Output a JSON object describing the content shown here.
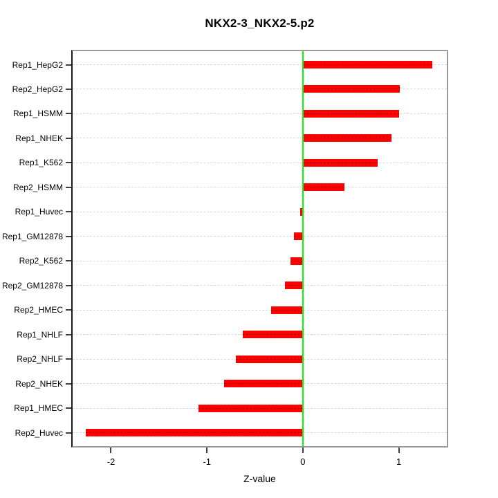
{
  "figure": {
    "background": "#ffffff"
  },
  "chart_data": {
    "type": "bar",
    "orientation": "horizontal",
    "title": "NKX2-3_NKX2-5.p2",
    "xlabel": "Z-value",
    "ylabel": "",
    "categories": [
      "Rep1_HepG2",
      "Rep2_HepG2",
      "Rep1_HSMM",
      "Rep1_NHEK",
      "Rep1_K562",
      "Rep2_HSMM",
      "Rep1_Huvec",
      "Rep1_GM12878",
      "Rep2_K562",
      "Rep2_GM12878",
      "Rep2_HMEC",
      "Rep1_NHLF",
      "Rep2_NHLF",
      "Rep2_NHEK",
      "Rep1_HMEC",
      "Rep2_Huvec"
    ],
    "values": [
      1.35,
      1.01,
      1.0,
      0.92,
      0.78,
      0.43,
      -0.03,
      -0.09,
      -0.13,
      -0.19,
      -0.33,
      -0.63,
      -0.7,
      -0.82,
      -1.09,
      -2.26
    ],
    "xlim": [
      -2.4,
      1.5
    ],
    "x_ticks": [
      {
        "label": "-2",
        "value": -2
      },
      {
        "label": "-1",
        "value": -1
      },
      {
        "label": "0",
        "value": 0
      },
      {
        "label": "1",
        "value": 1
      }
    ],
    "grid": true,
    "legend": "none",
    "colors": {
      "bar": "#ff0000",
      "zero_line": "#00ff00",
      "grid": "#d9d9d9",
      "frame": "#9b9b9b",
      "axis": "#1a1a1a"
    }
  }
}
